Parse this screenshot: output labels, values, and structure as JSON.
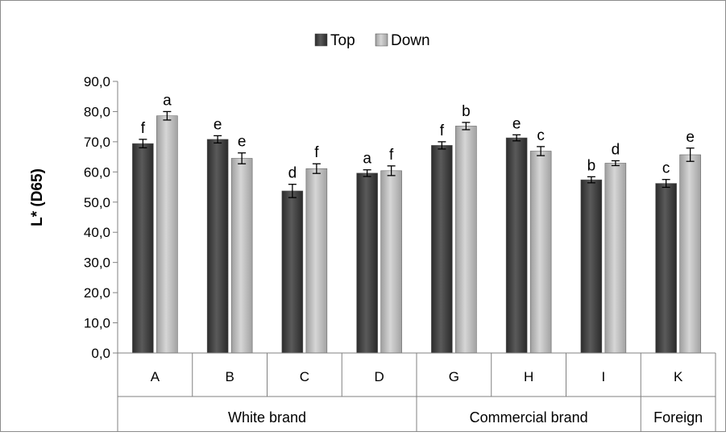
{
  "chart_data": {
    "type": "bar",
    "ylabel": "L* (D65)",
    "ylim": [
      0,
      90
    ],
    "yticks": [
      "0,0",
      "10,0",
      "20,0",
      "30,0",
      "40,0",
      "50,0",
      "60,0",
      "70,0",
      "80,0",
      "90,0"
    ],
    "legend_position": "top-center",
    "grid": false,
    "categories": [
      "A",
      "B",
      "C",
      "D",
      "G",
      "H",
      "I",
      "K"
    ],
    "groups": [
      {
        "label": "White brand",
        "categories": [
          "A",
          "B",
          "C",
          "D"
        ]
      },
      {
        "label": "Commercial brand",
        "categories": [
          "G",
          "H",
          "I"
        ]
      },
      {
        "label": "Foreign",
        "categories": [
          "K"
        ]
      }
    ],
    "series": [
      {
        "name": "Top",
        "color": "#3d3d3d",
        "values": [
          69.4,
          70.8,
          53.7,
          59.6,
          68.8,
          71.3,
          57.4,
          56.2
        ],
        "errors": [
          1.4,
          1.2,
          2.2,
          1.1,
          1.2,
          1.0,
          1.0,
          1.3
        ],
        "letters": [
          "f",
          "e",
          "d",
          "a",
          "f",
          "e",
          "b",
          "c"
        ]
      },
      {
        "name": "Down",
        "color": "#b8b8b8",
        "values": [
          78.6,
          64.5,
          61.1,
          60.4,
          75.2,
          66.9,
          62.9,
          65.7
        ],
        "errors": [
          1.4,
          1.8,
          1.6,
          1.6,
          1.2,
          1.5,
          0.8,
          2.2
        ],
        "letters": [
          "a",
          "e",
          "f",
          "f",
          "b",
          "c",
          "d",
          "e"
        ]
      }
    ]
  }
}
